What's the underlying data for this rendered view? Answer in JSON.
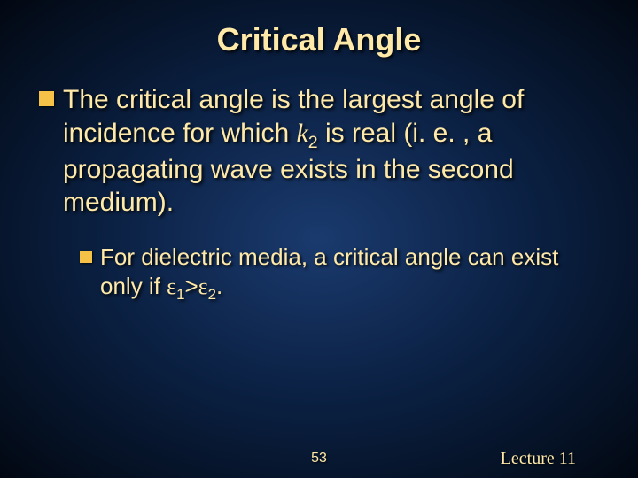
{
  "slide": {
    "title": "Critical Angle",
    "bullet1_part1": "The critical angle is the largest angle of incidence for which ",
    "bullet1_var": "k",
    "bullet1_sub": "2",
    "bullet1_part2": " is real (i. e. , a propagating wave exists in the second medium).",
    "sub_bullet_part1": "For dielectric media, a critical angle can exist only if ",
    "sub_eps1": "ε",
    "sub_sub1": "1",
    "sub_gt": ">",
    "sub_eps2": "ε",
    "sub_sub2": "2",
    "sub_period": ".",
    "page_number": "53",
    "lecture_label": "Lecture 11"
  },
  "style": {
    "title_color": "#ffe9a8",
    "text_color": "#ffe9a8",
    "bullet_color": "#f5c146",
    "bg_center": "#1a3a6e",
    "bg_edge": "#020812",
    "title_fontsize": 36,
    "body_fontsize": 30,
    "sub_fontsize": 26
  }
}
